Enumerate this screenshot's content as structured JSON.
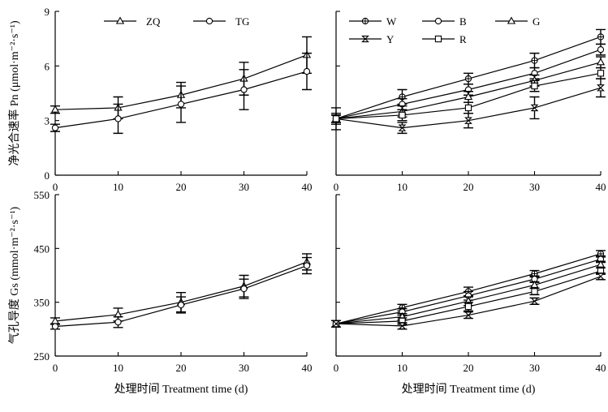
{
  "colors": {
    "ink": "#000000",
    "background": "#ffffff"
  },
  "chart_data": [
    {
      "id": "pn-variety",
      "type": "line",
      "ylabel": "净光合速率 Pn (μmol·m⁻²·s⁻¹)",
      "xlabel": "",
      "x": [
        0,
        10,
        20,
        30,
        40
      ],
      "xlim": [
        0,
        40
      ],
      "ylim": [
        0,
        9
      ],
      "x_ticks": [
        "0",
        "10",
        "20",
        "30",
        "40"
      ],
      "y_ticks": [
        "0",
        "3",
        "6",
        "9"
      ],
      "grid": false,
      "legend_position": "top",
      "series": [
        {
          "name": "ZQ",
          "marker": "triangle",
          "values": [
            3.6,
            3.7,
            4.4,
            5.3,
            6.6
          ],
          "error": [
            0.2,
            0.6,
            0.7,
            0.9,
            1.0
          ]
        },
        {
          "name": "TG",
          "marker": "circle",
          "values": [
            2.6,
            3.1,
            3.9,
            4.7,
            5.7
          ],
          "error": [
            0.2,
            0.8,
            1.0,
            1.1,
            1.0
          ]
        }
      ]
    },
    {
      "id": "pn-light",
      "type": "line",
      "ylabel": "",
      "xlabel": "",
      "x": [
        0,
        10,
        20,
        30,
        40
      ],
      "xlim": [
        0,
        40
      ],
      "ylim": [
        0,
        9
      ],
      "x_ticks": [
        "0",
        "10",
        "20",
        "30",
        "40"
      ],
      "y_ticks": [
        "0",
        "3",
        "6",
        "9"
      ],
      "grid": false,
      "legend_position": "top",
      "series": [
        {
          "name": "W",
          "marker": "circle-cross",
          "values": [
            3.1,
            4.3,
            5.3,
            6.3,
            7.6
          ],
          "error": [
            0.6,
            0.4,
            0.3,
            0.4,
            0.4
          ]
        },
        {
          "name": "B",
          "marker": "circle",
          "values": [
            3.1,
            3.9,
            4.7,
            5.6,
            6.9
          ],
          "error": [
            0.2,
            0.3,
            0.3,
            0.3,
            0.3
          ]
        },
        {
          "name": "G",
          "marker": "triangle",
          "values": [
            3.1,
            3.5,
            4.3,
            5.2,
            6.2
          ],
          "error": [
            0.2,
            0.3,
            0.3,
            0.3,
            0.3
          ]
        },
        {
          "name": "Y",
          "marker": "hourglass",
          "values": [
            3.1,
            2.6,
            3.0,
            3.7,
            4.8
          ],
          "error": [
            0.3,
            0.3,
            0.4,
            0.6,
            0.5
          ]
        },
        {
          "name": "R",
          "marker": "square",
          "values": [
            3.1,
            3.3,
            3.7,
            4.9,
            5.6
          ],
          "error": [
            0.2,
            0.3,
            0.3,
            0.3,
            0.3
          ]
        }
      ]
    },
    {
      "id": "gs-variety",
      "type": "line",
      "ylabel": "气孔导度 Gs (mmol·m⁻²·s⁻¹)",
      "xlabel": "处理时间 Treatment time (d)",
      "x": [
        0,
        10,
        20,
        30,
        40
      ],
      "xlim": [
        0,
        40
      ],
      "ylim": [
        250,
        550
      ],
      "x_ticks": [
        "0",
        "10",
        "20",
        "30",
        "40"
      ],
      "y_ticks": [
        "250",
        "350",
        "450",
        "550"
      ],
      "grid": false,
      "series": [
        {
          "name": "ZQ",
          "marker": "triangle",
          "values": [
            315,
            327,
            350,
            380,
            425
          ],
          "error": [
            6,
            12,
            18,
            20,
            15
          ]
        },
        {
          "name": "TG",
          "marker": "circle",
          "values": [
            305,
            313,
            345,
            375,
            418
          ],
          "error": [
            5,
            10,
            15,
            18,
            15
          ]
        }
      ]
    },
    {
      "id": "gs-light",
      "type": "line",
      "ylabel": "",
      "xlabel": "处理时间 Treatment time (d)",
      "x": [
        0,
        10,
        20,
        30,
        40
      ],
      "xlim": [
        0,
        40
      ],
      "ylim": [
        250,
        550
      ],
      "x_ticks": [
        "0",
        "10",
        "20",
        "30",
        "40"
      ],
      "y_ticks": [],
      "grid": false,
      "series": [
        {
          "name": "W",
          "marker": "circle-cross",
          "values": [
            310,
            340,
            370,
            403,
            440
          ],
          "error": [
            6,
            6,
            8,
            6,
            6
          ]
        },
        {
          "name": "B",
          "marker": "circle",
          "values": [
            310,
            332,
            362,
            393,
            430
          ],
          "error": [
            6,
            6,
            8,
            6,
            6
          ]
        },
        {
          "name": "G",
          "marker": "triangle",
          "values": [
            310,
            323,
            352,
            382,
            420
          ],
          "error": [
            6,
            6,
            8,
            6,
            6
          ]
        },
        {
          "name": "R",
          "marker": "square",
          "values": [
            310,
            315,
            342,
            370,
            408
          ],
          "error": [
            6,
            6,
            8,
            6,
            6
          ]
        },
        {
          "name": "Y",
          "marker": "hourglass",
          "values": [
            310,
            306,
            326,
            352,
            398
          ],
          "error": [
            6,
            6,
            6,
            6,
            6
          ]
        }
      ]
    }
  ]
}
